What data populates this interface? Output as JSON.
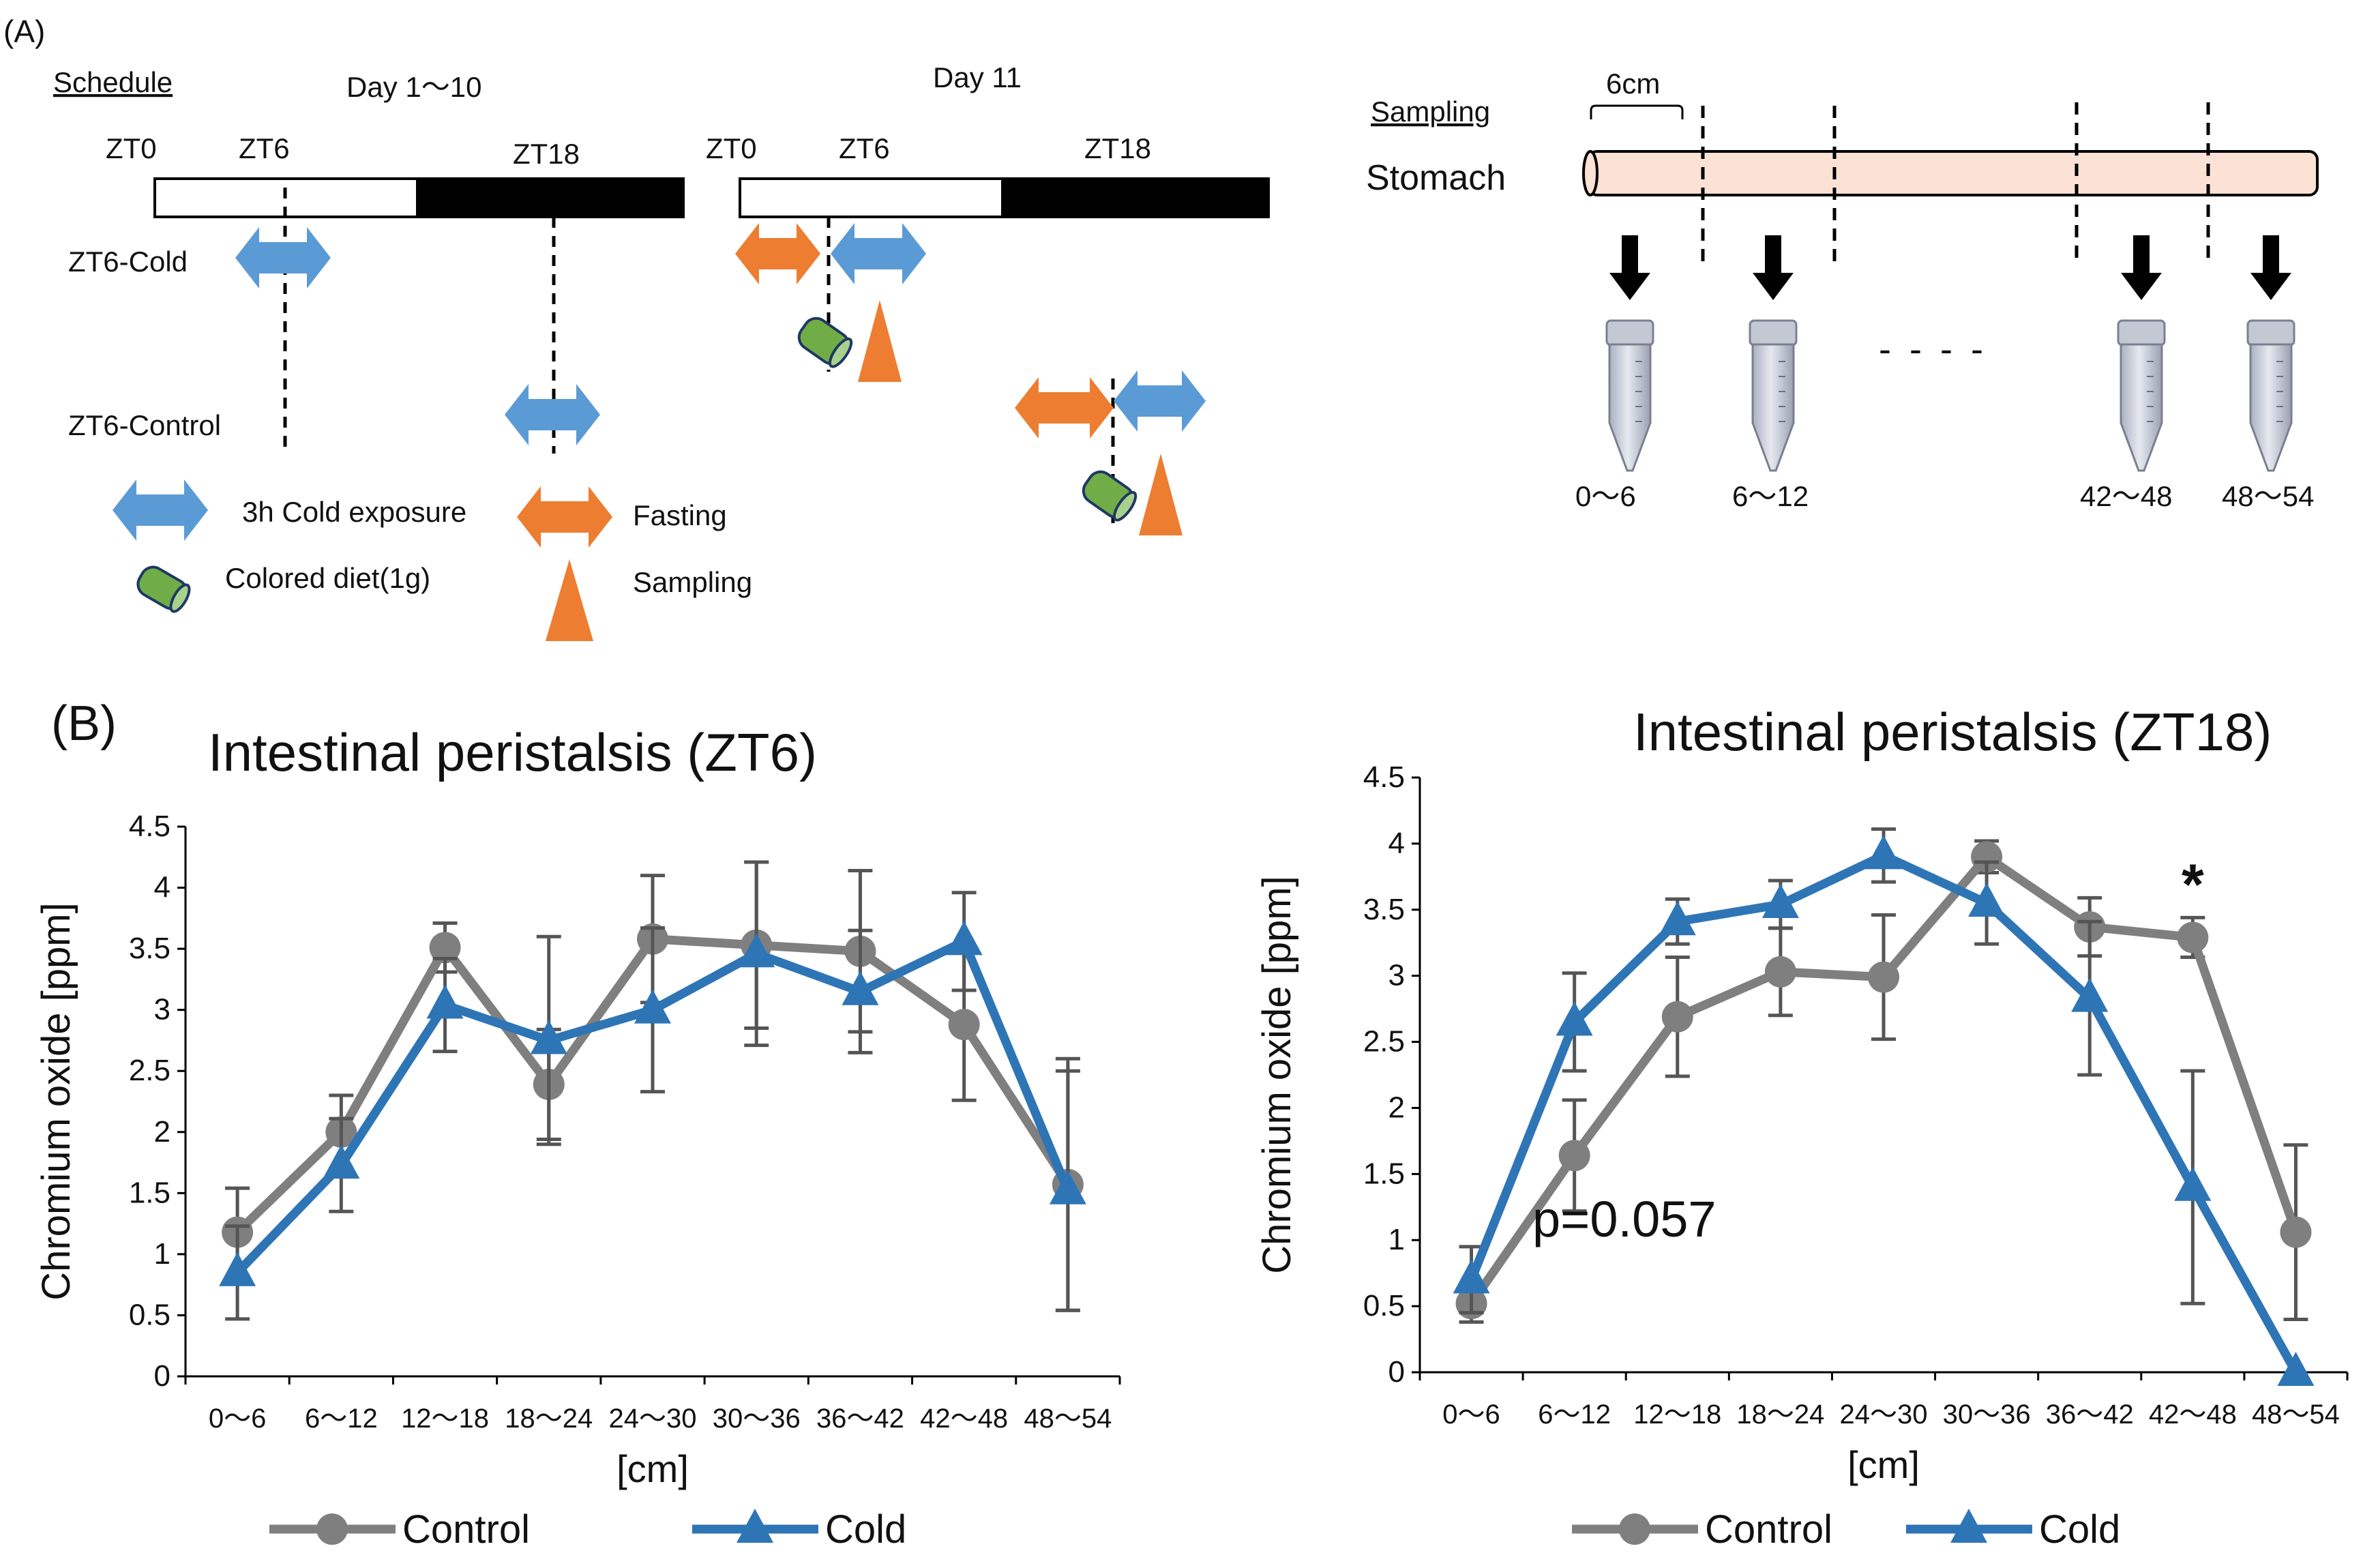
{
  "panel_a": {
    "label": "(A)",
    "schedule": {
      "heading": "Schedule",
      "day_1_10": "Day 1～10",
      "day_11": "Day 11",
      "zt0": "ZT0",
      "zt6": "ZT6",
      "zt18": "ZT18",
      "zt6_cold": "ZT6-Cold",
      "zt6_control": "ZT6-Control"
    },
    "legend": {
      "cold_exposure": "3h Cold exposure",
      "colored_diet": "Colored diet(1g)",
      "fasting": "Fasting",
      "sampling": "Sampling"
    },
    "sampling": {
      "heading": "Sampling",
      "segment_length": "6cm",
      "organ": "Stomach",
      "ellipsis": "- - - -",
      "tubes": [
        "0～6",
        "6～12",
        "42～48",
        "48～54"
      ]
    },
    "colors": {
      "cold": "#5b9bd5",
      "fasting": "#ed7d31",
      "diet": "#70ad47",
      "intestine": "#fbe2d5"
    }
  },
  "panel_b": {
    "label": "(B)"
  },
  "chart_data": [
    {
      "type": "line",
      "title": "Intestinal peristalsis (ZT6)",
      "xlabel": "[cm]",
      "ylabel": "Chromium oxide [ppm]",
      "categories": [
        "0～6",
        "6～12",
        "12～18",
        "18～24",
        "24～30",
        "30～36",
        "36～42",
        "42～48",
        "48～54"
      ],
      "ylim": [
        0,
        4.5
      ],
      "yticks": [
        "0",
        "0.5",
        "1",
        "1.5",
        "2",
        "2.5",
        "3",
        "3.5",
        "4",
        "4.5"
      ],
      "series": [
        {
          "name": "Control",
          "color": "#7f7f7f",
          "marker": "circle",
          "values": [
            1.18,
            2.0,
            3.51,
            2.39,
            3.58,
            3.53,
            3.48,
            2.88,
            1.57
          ],
          "errors": [
            0.36,
            0.3,
            0.2,
            0.45,
            0.52,
            0.68,
            0.66,
            0.62,
            1.03
          ]
        },
        {
          "name": "Cold",
          "color": "#2e75b6",
          "marker": "triangle",
          "values": [
            0.85,
            1.73,
            3.04,
            2.75,
            3.0,
            3.46,
            3.15,
            3.56,
            1.52
          ],
          "errors": [
            0.38,
            0.38,
            0.38,
            0.85,
            0.67,
            0.75,
            0.5,
            0.4,
            0.98
          ]
        }
      ],
      "legend": [
        "Control",
        "Cold"
      ]
    },
    {
      "type": "line",
      "title": "Intestinal peristalsis (ZT18)",
      "xlabel": "[cm]",
      "ylabel": "Chromium oxide [ppm]",
      "categories": [
        "0～6",
        "6～12",
        "12～18",
        "18～24",
        "24～30",
        "30～36",
        "36～42",
        "42～48",
        "48～54"
      ],
      "ylim": [
        0,
        4.5
      ],
      "yticks": [
        "0",
        "0.5",
        "1",
        "1.5",
        "2",
        "2.5",
        "3",
        "3.5",
        "4",
        "4.5"
      ],
      "series": [
        {
          "name": "Control",
          "color": "#7f7f7f",
          "marker": "circle",
          "values": [
            0.52,
            1.64,
            2.69,
            3.03,
            2.99,
            3.9,
            3.37,
            3.29,
            1.06
          ],
          "errors": [
            0.14,
            0.42,
            0.45,
            0.33,
            0.47,
            0.12,
            0.22,
            0.15,
            0.66
          ]
        },
        {
          "name": "Cold",
          "color": "#2e75b6",
          "marker": "triangle",
          "values": [
            0.7,
            2.65,
            3.41,
            3.54,
            3.91,
            3.55,
            2.83,
            1.4,
            0.0
          ],
          "errors": [
            0.25,
            0.37,
            0.17,
            0.18,
            0.2,
            0.31,
            0.58,
            0.88,
            0.0
          ]
        }
      ],
      "legend": [
        "Control",
        "Cold"
      ],
      "annotations": {
        "p_value": "p=0.057",
        "significance": "*",
        "significance_index": 7
      }
    }
  ]
}
